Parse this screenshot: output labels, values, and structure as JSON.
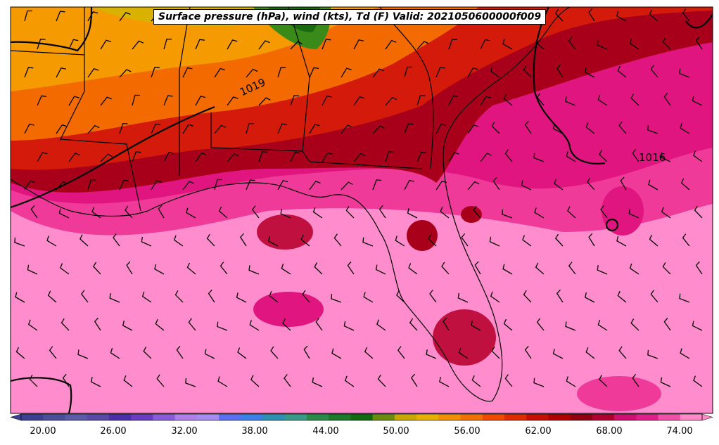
{
  "title": "Surface pressure (hPa), wind (kts), Td (F) Valid: 2021050600000f009",
  "isobar_labels": [
    "1019",
    "1016"
  ],
  "colorbar": {
    "ticks": [
      "20.00",
      "26.00",
      "32.00",
      "38.00",
      "44.00",
      "50.00",
      "56.00",
      "62.00",
      "68.00",
      "74.00"
    ],
    "colors": [
      "#3a3f8f",
      "#4a4f9c",
      "#5a5aa8",
      "#5a4aa8",
      "#4b2fa8",
      "#6a3cc0",
      "#8a5ad8",
      "#b07ee8",
      "#a58af0",
      "#5a70f0",
      "#3a80e8",
      "#2f8fb0",
      "#3a9a8a",
      "#2a8a4a",
      "#1a7a2a",
      "#0f6a10",
      "#6a8a10",
      "#c8a800",
      "#e8b000",
      "#f09000",
      "#f07000",
      "#f04a00",
      "#e02a00",
      "#c81000",
      "#b00000",
      "#900010",
      "#b00030",
      "#d01070",
      "#e0208a",
      "#f050a8",
      "#ff8ac8"
    ]
  },
  "colors": {
    "bg_pink": "#ff8ccc",
    "mid_pink": "#f03a9a",
    "magenta": "#e0157f",
    "dark_red": "#a8001a",
    "red": "#d41a0a",
    "orange": "#f26a00",
    "amber": "#f59a00",
    "gold": "#d9b200",
    "green": "#3a8a1a",
    "darkgreen": "#1a6a10"
  }
}
